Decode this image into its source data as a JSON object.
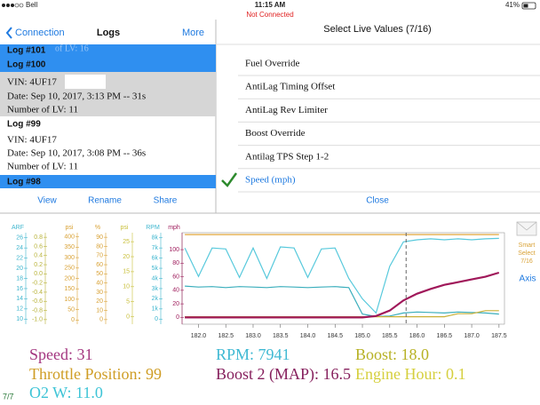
{
  "status_bar": {
    "carrier": "Bell",
    "time": "11:15 AM",
    "battery": "41%",
    "connection": "Not Connected"
  },
  "logs_panel": {
    "back": "Connection",
    "title": "Logs",
    "more": "More",
    "ghost": "of LV: 16",
    "logs": [
      {
        "title": "Log #101"
      },
      {
        "title": "Log #100",
        "vin": "VIN: 4UF17",
        "date": "Date: Sep 10, 2017, 3:13 PM -- 31s",
        "lv": "Number of LV: 11"
      },
      {
        "title": "Log #99",
        "vin": "VIN: 4UF17",
        "date": "Date: Sep 10, 2017, 3:08 PM -- 36s",
        "lv": "Number of LV: 11"
      },
      {
        "title": "Log #98"
      }
    ],
    "toolbar": [
      "View",
      "Rename",
      "Share"
    ]
  },
  "live_values": {
    "title": "Select Live Values (7/16)",
    "items": [
      {
        "label": "Fuel Override",
        "checked": false
      },
      {
        "label": "AntiLag Timing Offset",
        "checked": false
      },
      {
        "label": "AntiLag Rev Limiter",
        "checked": false
      },
      {
        "label": "Boost Override",
        "checked": false
      },
      {
        "label": "Antilag TPS Step 1-2",
        "checked": false
      },
      {
        "label": "Speed (mph)",
        "checked": true
      }
    ],
    "close": "Close"
  },
  "chart_data": {
    "type": "line",
    "xlim": [
      181.7,
      187.6
    ],
    "xticks": [
      {
        "value": 182,
        "label": "182.0"
      },
      182.5,
      {
        "value": 183,
        "label": "183.0"
      },
      183.5,
      {
        "value": 184,
        "label": "184.0"
      },
      184.5,
      {
        "value": 185,
        "label": "185.0"
      },
      185.5,
      {
        "value": 186,
        "label": "186.0"
      },
      186.5,
      {
        "value": 187,
        "label": "187.0"
      },
      187.5
    ],
    "cursor": 185.8,
    "axes": [
      {
        "name": "ARF",
        "color": "#3fb6cf",
        "lim": [
          9,
          27
        ],
        "ticks": [
          26,
          24,
          22,
          20,
          18,
          16,
          14,
          12,
          10
        ]
      },
      {
        "color": "#b9b33a",
        "lim": [
          -1.1,
          0.9
        ],
        "ticks": [
          0.8,
          0.6,
          0.4,
          0.2,
          {
            "value": 0,
            "label": "0.0"
          },
          -0.2,
          -0.4,
          -0.6,
          -0.8,
          {
            "value": -1,
            "label": "-1.0"
          }
        ]
      },
      {
        "name": "psi",
        "color": "#d9a236",
        "lim": [
          -20,
          420
        ],
        "ticks": [
          400,
          350,
          300,
          250,
          200,
          150,
          100,
          50,
          0
        ]
      },
      {
        "name": "%",
        "color": "#d9a236",
        "lim": [
          -5,
          95
        ],
        "ticks": [
          90,
          80,
          70,
          60,
          50,
          40,
          30,
          20,
          10,
          0
        ]
      },
      {
        "name": "psi",
        "color": "#c9bf3a",
        "lim": [
          -2.5,
          28
        ],
        "ticks": [
          25,
          20,
          15,
          10,
          5,
          0
        ]
      },
      {
        "name": "RPM",
        "color": "#3fb6cf",
        "lim": [
          -500,
          8500
        ],
        "ticks": [
          {
            "value": 8000,
            "label": "8k"
          },
          {
            "value": 7000,
            "label": "7k"
          },
          {
            "value": 6000,
            "label": "6k"
          },
          {
            "value": 5000,
            "label": "5k"
          },
          {
            "value": 4000,
            "label": "4k"
          },
          {
            "value": 3000,
            "label": "3k"
          },
          {
            "value": 2000,
            "label": "2k"
          },
          {
            "value": 1000,
            "label": "1k"
          },
          0
        ]
      },
      {
        "name": "mph",
        "color": "#a0205f",
        "lim": [
          -10,
          125
        ],
        "ticks": [
          100,
          80,
          60,
          40,
          20,
          0
        ]
      }
    ],
    "x": [
      181.75,
      182.0,
      182.25,
      182.5,
      182.75,
      183.0,
      183.25,
      183.5,
      183.75,
      184.0,
      184.25,
      184.5,
      184.75,
      185.0,
      185.25,
      185.5,
      185.75,
      186.0,
      186.25,
      186.5,
      186.75,
      187.0,
      187.25,
      187.5
    ],
    "series": [
      {
        "color": "#e0a53a",
        "axis": 3,
        "values": [
          93,
          93,
          93,
          93,
          93,
          93,
          93,
          93,
          93,
          93,
          93,
          93,
          93,
          93,
          93,
          93,
          93,
          93,
          93,
          93,
          93,
          93,
          93,
          93
        ]
      },
      {
        "color": "#57c9dc",
        "axis": 5,
        "values": [
          7000,
          4200,
          7000,
          6900,
          4100,
          7000,
          4000,
          7100,
          7000,
          4100,
          6900,
          7000,
          4000,
          2000,
          600,
          5200,
          7600,
          7800,
          7900,
          7800,
          7900,
          7800,
          7900,
          7941
        ]
      },
      {
        "color": "#3aaebc",
        "axis": 0,
        "values": [
          16.5,
          16.3,
          16.4,
          16.2,
          16.4,
          16.3,
          16.2,
          16.4,
          16.3,
          16.2,
          16.3,
          16.4,
          16.2,
          11,
          10.5,
          10.6,
          11.2,
          11.4,
          11.3,
          11.2,
          11.4,
          11.3,
          11.2,
          11
        ]
      },
      {
        "color": "#c9b035",
        "axis": 4,
        "values": [
          0,
          0,
          0,
          0,
          0,
          0,
          0,
          0,
          0,
          0,
          0,
          0,
          0,
          0,
          0,
          0,
          0,
          0,
          0,
          0,
          1,
          1,
          2,
          2
        ]
      },
      {
        "color": "#a0185a",
        "axis": 6,
        "values": [
          0,
          0,
          0,
          0,
          0,
          0,
          0,
          0,
          0,
          0,
          0,
          0,
          0,
          0,
          2,
          10,
          25,
          35,
          42,
          48,
          52,
          56,
          60,
          66
        ]
      }
    ]
  },
  "side": {
    "smart_select": [
      "Smart",
      "Select",
      "7/16"
    ],
    "axis_button": "Axis"
  },
  "readouts": [
    {
      "text": "Speed: 31",
      "color": "#a3357f"
    },
    {
      "text": "RPM: 7941",
      "color": "#3fb9d3"
    },
    {
      "text": "Boost: 18.0",
      "color": "#b7b124"
    },
    {
      "text": "Throttle Position: 99",
      "color": "#cf9d25"
    },
    {
      "text": "Boost 2 (MAP): 16.5",
      "color": "#86205d"
    },
    {
      "text": "Engine Hour: 0.1",
      "color": "#d5cf3d"
    },
    {
      "text": "O2 W: 11.0",
      "color": "#3ec4d6"
    }
  ],
  "page_indicator": "7/7"
}
